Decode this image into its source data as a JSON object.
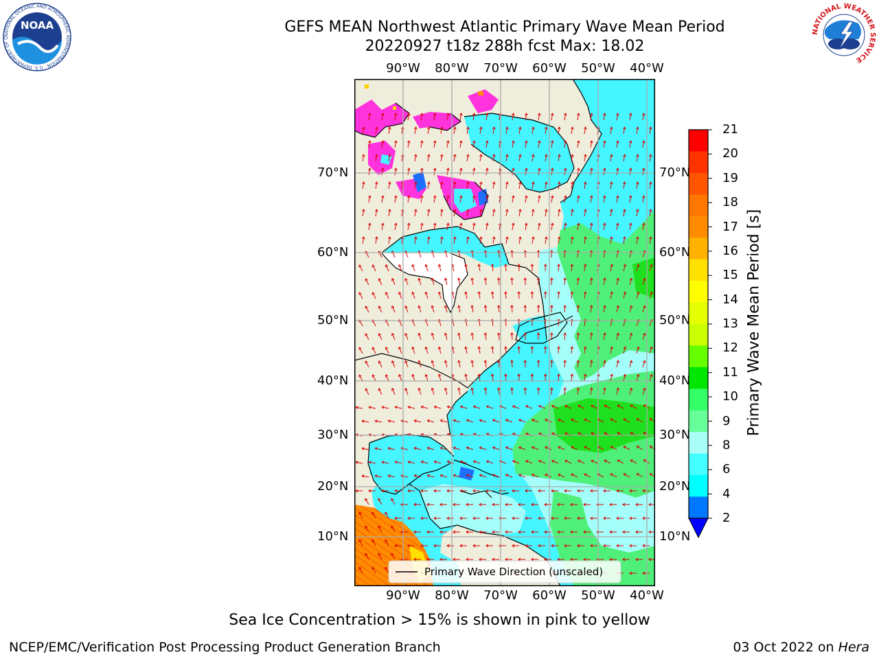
{
  "title": {
    "line1": "GEFS MEAN Northwest Atlantic Primary Wave Mean Period",
    "line2": "20220927 t18z 288h fcst   Max: 18.02"
  },
  "logos": {
    "noaa_text": "NOAA",
    "noaa_ring": "NATIONAL OCEANIC AND ATMOSPHERIC ADMINISTRATION · U.S. DEPARTMENT OF COMMERCE",
    "nws_ring": "NATIONAL WEATHER SERVICE"
  },
  "map": {
    "lon_labels": [
      "90°W",
      "80°W",
      "70°W",
      "60°W",
      "50°W",
      "40°W"
    ],
    "lat_labels": [
      "70°N",
      "60°N",
      "50°N",
      "40°N",
      "30°N",
      "20°N",
      "10°N"
    ],
    "legend_label": "Primary Wave Direction (unscaled)",
    "colors": {
      "land": "#efeddc",
      "water_low": "#45f5ff",
      "water_mid": "#a4fffb",
      "swell": "#4ff07a",
      "swell_strong": "#1fe01f",
      "tropic_high": "#ff8c00",
      "ice": "#ff33dd",
      "arrow": "#dd0000"
    }
  },
  "colorbar": {
    "label": "Primary Wave Mean Period [s]",
    "ticks": [
      "21",
      "20",
      "19",
      "18",
      "17",
      "16",
      "15",
      "14",
      "13",
      "12",
      "11",
      "10",
      "9",
      "8",
      "6",
      "4",
      "2"
    ],
    "colors": [
      "#ff0000",
      "#ff3300",
      "#ff5500",
      "#ff7700",
      "#ff8c00",
      "#ffb300",
      "#ffe000",
      "#ffff00",
      "#e6ff00",
      "#c9ff00",
      "#66ff00",
      "#00e600",
      "#33ff66",
      "#66ff99",
      "#a9fff7",
      "#44ffff",
      "#00ffff",
      "#0077ff"
    ],
    "extend_color": "#0000ff"
  },
  "footer": {
    "note": "Sea Ice Concentration > 15% is shown in pink to yellow",
    "left": "NCEP/EMC/Verification Post Processing Product Generation Branch",
    "right_date": "03 Oct 2022 on ",
    "right_machine": "Hera"
  }
}
